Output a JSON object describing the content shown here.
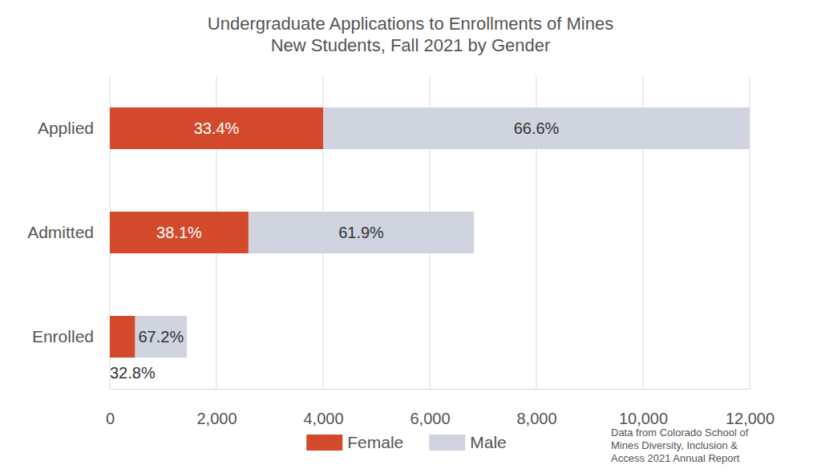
{
  "chart_data": {
    "type": "bar",
    "orientation": "horizontal",
    "stacked": true,
    "title": "Undergraduate Applications to Enrollments of Mines\nNew Students, Fall 2021 by Gender",
    "note": "Data from Colorado School of\nMines Diversity, Inclusion &\nAccess 2021 Annual Report",
    "categories": [
      "Applied",
      "Admitted",
      "Enrolled"
    ],
    "series": [
      {
        "name": "Female",
        "color": "#d24a2b",
        "values": [
          4000,
          2600,
          475
        ],
        "share_labels": [
          "33.4%",
          "38.1%",
          "32.8%"
        ]
      },
      {
        "name": "Male",
        "color": "#cfd4de",
        "values": [
          8000,
          4230,
          970
        ],
        "share_labels": [
          "66.6%",
          "61.9%",
          "67.2%"
        ]
      }
    ],
    "xlim": [
      0,
      12000
    ],
    "xticks": [
      0,
      {
        "value": 2000,
        "label": "2,000"
      },
      {
        "value": 4000,
        "label": "4,000"
      },
      {
        "value": 6000,
        "label": "6,000"
      },
      {
        "value": 8000,
        "label": "8,000"
      },
      {
        "value": 10000,
        "label": "10,000"
      },
      {
        "value": 12000,
        "label": "12,000"
      }
    ],
    "grid": true,
    "legend": "bottom"
  }
}
